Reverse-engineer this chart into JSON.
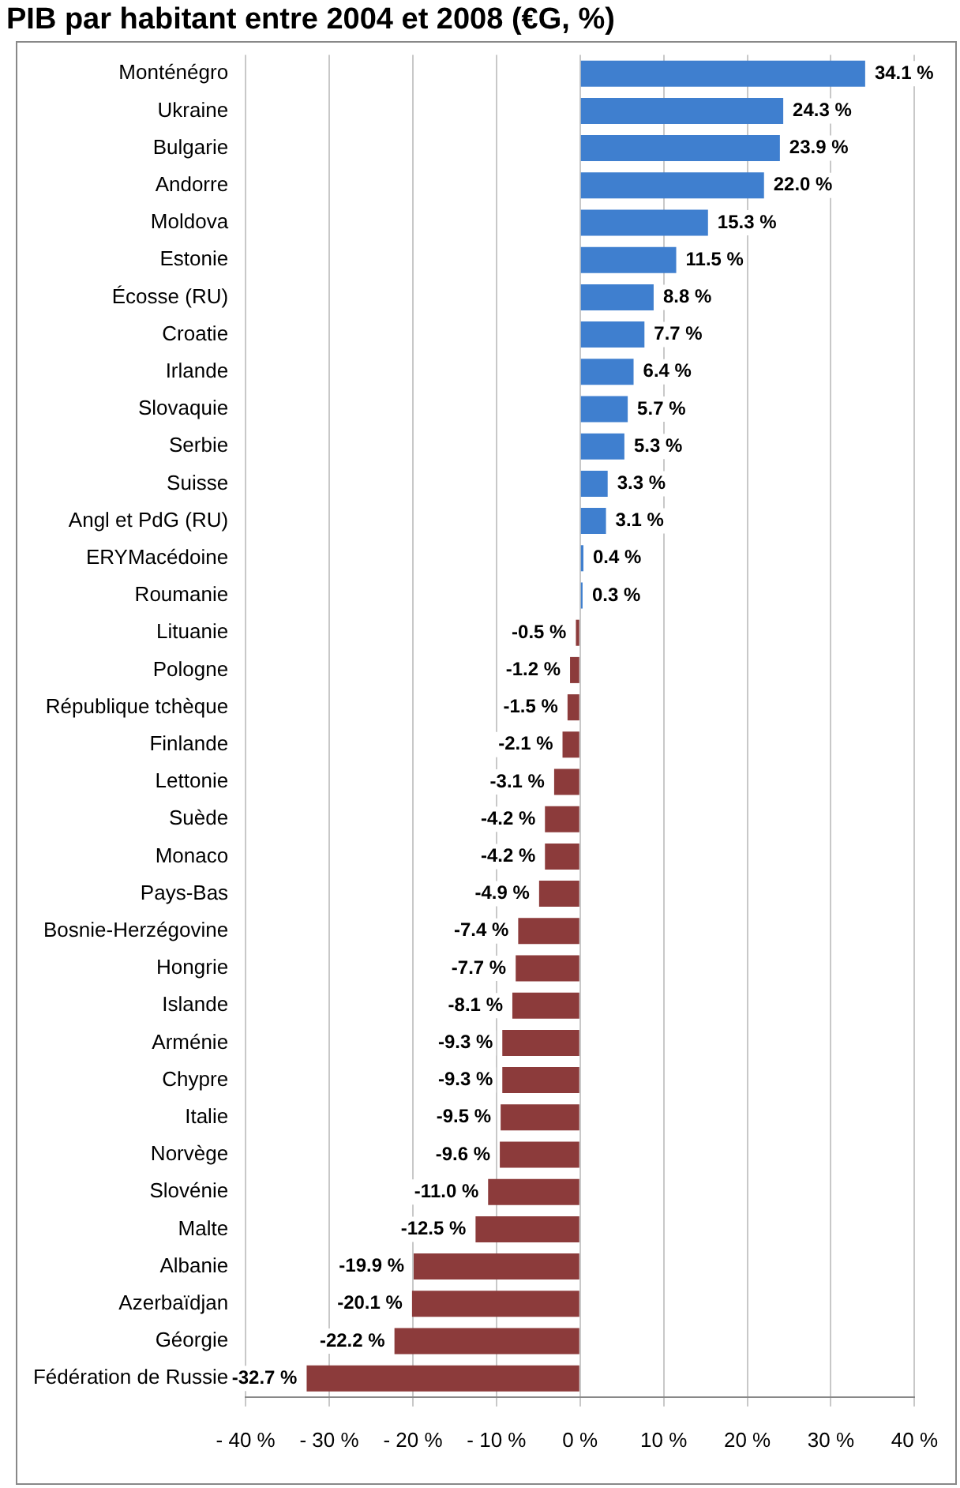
{
  "chart_data": {
    "type": "bar",
    "orientation": "horizontal",
    "title": "PIB par habitant entre 2004 et 2008 (€G, %)",
    "categories": [
      "Monténégro",
      "Ukraine",
      "Bulgarie",
      "Andorre",
      "Moldova",
      "Estonie",
      "Écosse (RU)",
      "Croatie",
      "Irlande",
      "Slovaquie",
      "Serbie",
      "Suisse",
      "Angl et PdG (RU)",
      "ERYMacédoine",
      "Roumanie",
      "Lituanie",
      "Pologne",
      "République tchèque",
      "Finlande",
      "Lettonie",
      "Suède",
      "Monaco",
      "Pays-Bas",
      "Bosnie-Herzégovine",
      "Hongrie",
      "Islande",
      "Arménie",
      "Chypre",
      "Italie",
      "Norvège",
      "Slovénie",
      "Malte",
      "Albanie",
      "Azerbaïdjan",
      "Géorgie",
      "Fédération de Russie"
    ],
    "values": [
      34.1,
      24.3,
      23.9,
      22.0,
      15.3,
      11.5,
      8.8,
      7.7,
      6.4,
      5.7,
      5.3,
      3.3,
      3.1,
      0.4,
      0.3,
      -0.5,
      -1.2,
      -1.5,
      -2.1,
      -3.1,
      -4.2,
      -4.2,
      -4.9,
      -7.4,
      -7.7,
      -8.1,
      -9.3,
      -9.3,
      -9.5,
      -9.6,
      -11.0,
      -12.5,
      -19.9,
      -20.1,
      -22.2,
      -32.7
    ],
    "value_labels": [
      "34.1 %",
      "24.3 %",
      "23.9 %",
      "22.0 %",
      "15.3 %",
      "11.5 %",
      "8.8 %",
      "7.7 %",
      "6.4 %",
      "5.7 %",
      "5.3 %",
      "3.3 %",
      "3.1 %",
      "0.4 %",
      "0.3 %",
      "-0.5 %",
      "-1.2 %",
      "-1.5 %",
      "-2.1 %",
      "-3.1 %",
      "-4.2 %",
      "-4.2 %",
      "-4.9 %",
      "-7.4 %",
      "-7.7 %",
      "-8.1 %",
      "-9.3 %",
      "-9.3 %",
      "-9.5 %",
      "-9.6 %",
      "-11.0 %",
      "-12.5 %",
      "-19.9 %",
      "-20.1 %",
      "-22.2 %",
      "-32.7 %"
    ],
    "colors": [
      "#3f7fcf",
      "#3f7fcf",
      "#3f7fcf",
      "#3f7fcf",
      "#3f7fcf",
      "#3f7fcf",
      "#3f7fcf",
      "#3f7fcf",
      "#3f7fcf",
      "#3f7fcf",
      "#3f7fcf",
      "#3f7fcf",
      "#3f7fcf",
      "#3f7fcf",
      "#3f7fcf",
      "#8c3b3b",
      "#8c3b3b",
      "#8c3b3b",
      "#8c3b3b",
      "#8c3b3b",
      "#8c3b3b",
      "#8c3b3b",
      "#8c3b3b",
      "#8c3b3b",
      "#8c3b3b",
      "#8c3b3b",
      "#8c3b3b",
      "#8c3b3b",
      "#8c3b3b",
      "#8c3b3b",
      "#8c3b3b",
      "#8c3b3b",
      "#8c3b3b",
      "#8c3b3b",
      "#8c3b3b",
      "#8c3b3b"
    ],
    "xlim": [
      -40,
      40
    ],
    "xticks": [
      {
        "value": -40,
        "label": "- 40 %"
      },
      {
        "value": -30,
        "label": "- 30 %"
      },
      {
        "value": -20,
        "label": "- 20 %"
      },
      {
        "value": -10,
        "label": "- 10 %"
      },
      {
        "value": 0,
        "label": "0 %"
      },
      {
        "value": 10,
        "label": "10 %"
      },
      {
        "value": 20,
        "label": "20 %"
      },
      {
        "value": 30,
        "label": "30 %"
      },
      {
        "value": 40,
        "label": "40 %"
      }
    ],
    "grid": "x",
    "legend": false
  }
}
